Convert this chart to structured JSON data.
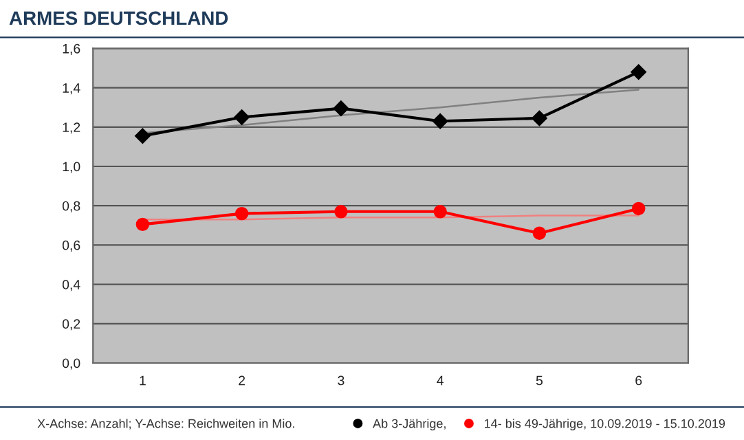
{
  "chart_data": {
    "type": "line",
    "title": "ARMES DEUTSCHLAND",
    "x": [
      1,
      2,
      3,
      4,
      5,
      6
    ],
    "xlim": [
      0.5,
      6.5
    ],
    "xticks": [
      1,
      2,
      3,
      4,
      5,
      6
    ],
    "ylim": [
      0,
      1.6
    ],
    "yticks": [
      {
        "value": 0,
        "label": "0,0"
      },
      {
        "value": 0.2,
        "label": "0,2"
      },
      {
        "value": 0.4,
        "label": "0,4"
      },
      {
        "value": 0.6,
        "label": "0,6"
      },
      {
        "value": 0.8,
        "label": "0,8"
      },
      {
        "value": 1.0,
        "label": "1,0"
      },
      {
        "value": 1.2,
        "label": "1,2"
      },
      {
        "value": 1.4,
        "label": "1,4"
      },
      {
        "value": 1.6,
        "label": "1,6"
      }
    ],
    "grid": "y",
    "legend": "bottom",
    "series": [
      {
        "name": "Ab 3-Jährige,",
        "color": "#000000",
        "marker": "diamond",
        "values": [
          1.155,
          1.25,
          1.295,
          1.23,
          1.245,
          1.48
        ]
      },
      {
        "name": "14- bis 49-Jährige, 10.09.2019 - 15.10.2019",
        "color": "#ff0000",
        "marker": "circle",
        "values": [
          0.705,
          0.76,
          0.77,
          0.77,
          0.66,
          0.785
        ]
      },
      {
        "color": "#808080",
        "marker": "none",
        "values": [
          1.17,
          1.21,
          1.26,
          1.3,
          1.35,
          1.39
        ]
      },
      {
        "color": "#f08080",
        "marker": "none",
        "values": [
          0.73,
          0.73,
          0.74,
          0.74,
          0.75,
          0.75
        ]
      }
    ],
    "annotations": [
      "X-Achse: Anzahl; Y-Achse: Reichweiten in Mio."
    ]
  }
}
